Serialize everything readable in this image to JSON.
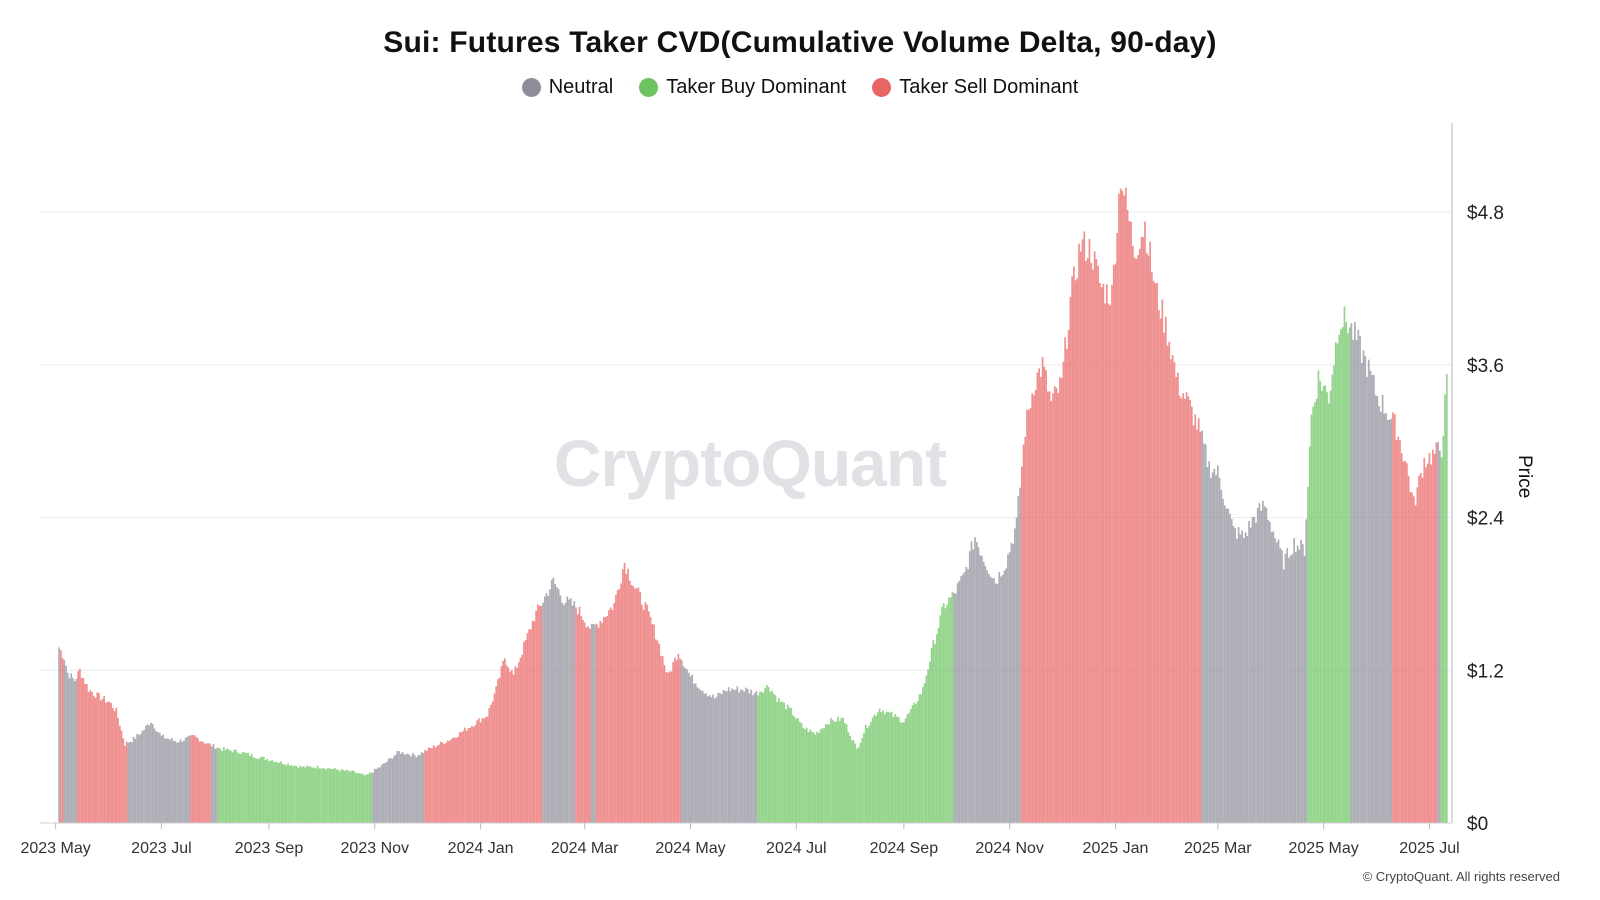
{
  "chart_data": {
    "type": "bar",
    "title": "Sui: Futures Taker CVD(Cumulative Volume Delta, 90-day)",
    "ylabel": "Price",
    "ylim": [
      0,
      5.5
    ],
    "y_ticks": [
      "$0",
      "$1.2",
      "$2.4",
      "$3.6",
      "$4.8"
    ],
    "y_tick_values": [
      0,
      1.2,
      2.4,
      3.6,
      4.8
    ],
    "x_ticks": [
      "2023 May",
      "2023 Jul",
      "2023 Sep",
      "2023 Nov",
      "2024 Jan",
      "2024 Mar",
      "2024 May",
      "2024 Jul",
      "2024 Sep",
      "2024 Nov",
      "2025 Jan",
      "2025 Mar",
      "2025 May",
      "2025 Jul"
    ],
    "x_tick_dates": [
      "2023-05-01",
      "2023-07-01",
      "2023-09-01",
      "2023-11-01",
      "2024-01-01",
      "2024-03-01",
      "2024-05-01",
      "2024-07-01",
      "2024-09-01",
      "2024-11-01",
      "2025-01-01",
      "2025-03-01",
      "2025-05-01",
      "2025-07-01"
    ],
    "x_range": [
      "2023-04-22",
      "2025-07-14"
    ],
    "grid": true,
    "legend_position": "top-center",
    "legend": [
      {
        "name": "Neutral",
        "color": "#8e8e99"
      },
      {
        "name": "Taker Buy Dominant",
        "color": "#6cc35f"
      },
      {
        "name": "Taker Sell Dominant",
        "color": "#e96464"
      }
    ],
    "series": [
      {
        "name": "Neutral",
        "color": "#8e8e99",
        "key": "N"
      },
      {
        "name": "Taker Buy Dominant",
        "color": "#6cc35f",
        "key": "B"
      },
      {
        "name": "Taker Sell Dominant",
        "color": "#e96464",
        "key": "S"
      }
    ],
    "price_points": [
      [
        "2023-05-03",
        1.38
      ],
      [
        "2023-05-06",
        1.3
      ],
      [
        "2023-05-08",
        1.18
      ],
      [
        "2023-05-12",
        1.12
      ],
      [
        "2023-05-15",
        1.2
      ],
      [
        "2023-05-20",
        1.05
      ],
      [
        "2023-05-25",
        1.0
      ],
      [
        "2023-06-01",
        0.95
      ],
      [
        "2023-06-05",
        0.88
      ],
      [
        "2023-06-10",
        0.62
      ],
      [
        "2023-06-15",
        0.66
      ],
      [
        "2023-06-20",
        0.72
      ],
      [
        "2023-06-25",
        0.8
      ],
      [
        "2023-07-01",
        0.68
      ],
      [
        "2023-07-10",
        0.64
      ],
      [
        "2023-07-20",
        0.68
      ],
      [
        "2023-07-28",
        0.62
      ],
      [
        "2023-08-05",
        0.58
      ],
      [
        "2023-08-15",
        0.56
      ],
      [
        "2023-08-25",
        0.52
      ],
      [
        "2023-09-01",
        0.5
      ],
      [
        "2023-09-10",
        0.47
      ],
      [
        "2023-09-20",
        0.44
      ],
      [
        "2023-10-01",
        0.44
      ],
      [
        "2023-10-10",
        0.42
      ],
      [
        "2023-10-20",
        0.4
      ],
      [
        "2023-10-27",
        0.37
      ],
      [
        "2023-11-05",
        0.45
      ],
      [
        "2023-11-15",
        0.56
      ],
      [
        "2023-11-25",
        0.53
      ],
      [
        "2023-12-05",
        0.6
      ],
      [
        "2023-12-15",
        0.66
      ],
      [
        "2023-12-25",
        0.75
      ],
      [
        "2024-01-05",
        0.85
      ],
      [
        "2024-01-10",
        1.05
      ],
      [
        "2024-01-15",
        1.3
      ],
      [
        "2024-01-20",
        1.16
      ],
      [
        "2024-01-25",
        1.35
      ],
      [
        "2024-02-01",
        1.62
      ],
      [
        "2024-02-08",
        1.8
      ],
      [
        "2024-02-12",
        1.9
      ],
      [
        "2024-02-18",
        1.75
      ],
      [
        "2024-02-25",
        1.7
      ],
      [
        "2024-03-05",
        1.52
      ],
      [
        "2024-03-12",
        1.62
      ],
      [
        "2024-03-18",
        1.72
      ],
      [
        "2024-03-24",
        2.05
      ],
      [
        "2024-03-30",
        1.85
      ],
      [
        "2024-04-05",
        1.7
      ],
      [
        "2024-04-12",
        1.45
      ],
      [
        "2024-04-18",
        1.15
      ],
      [
        "2024-04-24",
        1.35
      ],
      [
        "2024-05-01",
        1.15
      ],
      [
        "2024-05-08",
        1.05
      ],
      [
        "2024-05-15",
        0.98
      ],
      [
        "2024-05-22",
        1.05
      ],
      [
        "2024-06-01",
        1.05
      ],
      [
        "2024-06-08",
        1.02
      ],
      [
        "2024-06-15",
        1.08
      ],
      [
        "2024-06-20",
        0.98
      ],
      [
        "2024-06-28",
        0.88
      ],
      [
        "2024-07-05",
        0.75
      ],
      [
        "2024-07-12",
        0.7
      ],
      [
        "2024-07-20",
        0.8
      ],
      [
        "2024-07-28",
        0.82
      ],
      [
        "2024-08-05",
        0.58
      ],
      [
        "2024-08-10",
        0.75
      ],
      [
        "2024-08-18",
        0.9
      ],
      [
        "2024-08-25",
        0.85
      ],
      [
        "2024-09-01",
        0.8
      ],
      [
        "2024-09-06",
        0.9
      ],
      [
        "2024-09-12",
        1.05
      ],
      [
        "2024-09-18",
        1.4
      ],
      [
        "2024-09-24",
        1.7
      ],
      [
        "2024-09-30",
        1.8
      ],
      [
        "2024-10-06",
        1.95
      ],
      [
        "2024-10-12",
        2.25
      ],
      [
        "2024-10-18",
        2.05
      ],
      [
        "2024-10-24",
        1.9
      ],
      [
        "2024-10-30",
        2.05
      ],
      [
        "2024-11-05",
        2.35
      ],
      [
        "2024-11-10",
        3.1
      ],
      [
        "2024-11-15",
        3.45
      ],
      [
        "2024-11-20",
        3.6
      ],
      [
        "2024-11-25",
        3.3
      ],
      [
        "2024-12-01",
        3.45
      ],
      [
        "2024-12-06",
        4.1
      ],
      [
        "2024-12-12",
        4.55
      ],
      [
        "2024-12-18",
        4.5
      ],
      [
        "2024-12-24",
        4.2
      ],
      [
        "2024-12-30",
        4.15
      ],
      [
        "2025-01-04",
        5.1
      ],
      [
        "2025-01-08",
        4.8
      ],
      [
        "2025-01-12",
        4.5
      ],
      [
        "2025-01-18",
        4.7
      ],
      [
        "2025-01-24",
        4.2
      ],
      [
        "2025-02-01",
        3.8
      ],
      [
        "2025-02-06",
        3.45
      ],
      [
        "2025-02-12",
        3.3
      ],
      [
        "2025-02-18",
        3.1
      ],
      [
        "2025-02-24",
        2.8
      ],
      [
        "2025-03-01",
        2.75
      ],
      [
        "2025-03-06",
        2.5
      ],
      [
        "2025-03-10",
        2.3
      ],
      [
        "2025-03-16",
        2.25
      ],
      [
        "2025-03-22",
        2.4
      ],
      [
        "2025-03-28",
        2.5
      ],
      [
        "2025-04-03",
        2.25
      ],
      [
        "2025-04-08",
        2.05
      ],
      [
        "2025-04-14",
        2.2
      ],
      [
        "2025-04-20",
        2.15
      ],
      [
        "2025-04-24",
        3.2
      ],
      [
        "2025-04-28",
        3.5
      ],
      [
        "2025-05-04",
        3.35
      ],
      [
        "2025-05-10",
        3.95
      ],
      [
        "2025-05-14",
        3.95
      ],
      [
        "2025-05-20",
        3.8
      ],
      [
        "2025-05-26",
        3.6
      ],
      [
        "2025-06-01",
        3.35
      ],
      [
        "2025-06-06",
        3.25
      ],
      [
        "2025-06-12",
        3.1
      ],
      [
        "2025-06-18",
        2.8
      ],
      [
        "2025-06-22",
        2.5
      ],
      [
        "2025-06-28",
        2.85
      ],
      [
        "2025-07-04",
        2.9
      ],
      [
        "2025-07-08",
        2.95
      ],
      [
        "2025-07-11",
        3.45
      ]
    ],
    "color_segments": [
      [
        "2023-05-03",
        "2023-05-04",
        "N"
      ],
      [
        "2023-05-04",
        "2023-05-06",
        "S"
      ],
      [
        "2023-05-06",
        "2023-05-14",
        "N"
      ],
      [
        "2023-05-14",
        "2023-06-12",
        "S"
      ],
      [
        "2023-06-12",
        "2023-07-18",
        "N"
      ],
      [
        "2023-07-18",
        "2023-07-30",
        "S"
      ],
      [
        "2023-07-30",
        "2023-08-03",
        "N"
      ],
      [
        "2023-08-03",
        "2023-10-31",
        "B"
      ],
      [
        "2023-10-31",
        "2023-11-30",
        "N"
      ],
      [
        "2023-11-30",
        "2024-02-06",
        "S"
      ],
      [
        "2024-02-06",
        "2024-02-25",
        "N"
      ],
      [
        "2024-02-25",
        "2024-03-05",
        "S"
      ],
      [
        "2024-03-05",
        "2024-03-08",
        "N"
      ],
      [
        "2024-03-08",
        "2024-04-26",
        "S"
      ],
      [
        "2024-04-26",
        "2024-06-09",
        "N"
      ],
      [
        "2024-06-09",
        "2024-09-30",
        "B"
      ],
      [
        "2024-09-30",
        "2024-11-08",
        "N"
      ],
      [
        "2024-11-08",
        "2025-02-20",
        "S"
      ],
      [
        "2025-02-20",
        "2025-04-22",
        "N"
      ],
      [
        "2025-04-22",
        "2025-05-17",
        "B"
      ],
      [
        "2025-05-17",
        "2025-06-10",
        "N"
      ],
      [
        "2025-06-10",
        "2025-07-06",
        "S"
      ],
      [
        "2025-07-06",
        "2025-07-08",
        "N"
      ],
      [
        "2025-07-08",
        "2025-07-12",
        "B"
      ]
    ]
  },
  "watermark": "CryptoQuant",
  "copyright": "© CryptoQuant. All rights reserved",
  "colors": {
    "neutral": "#8e8e99",
    "buy": "#6cc35f",
    "sell": "#e96464"
  }
}
